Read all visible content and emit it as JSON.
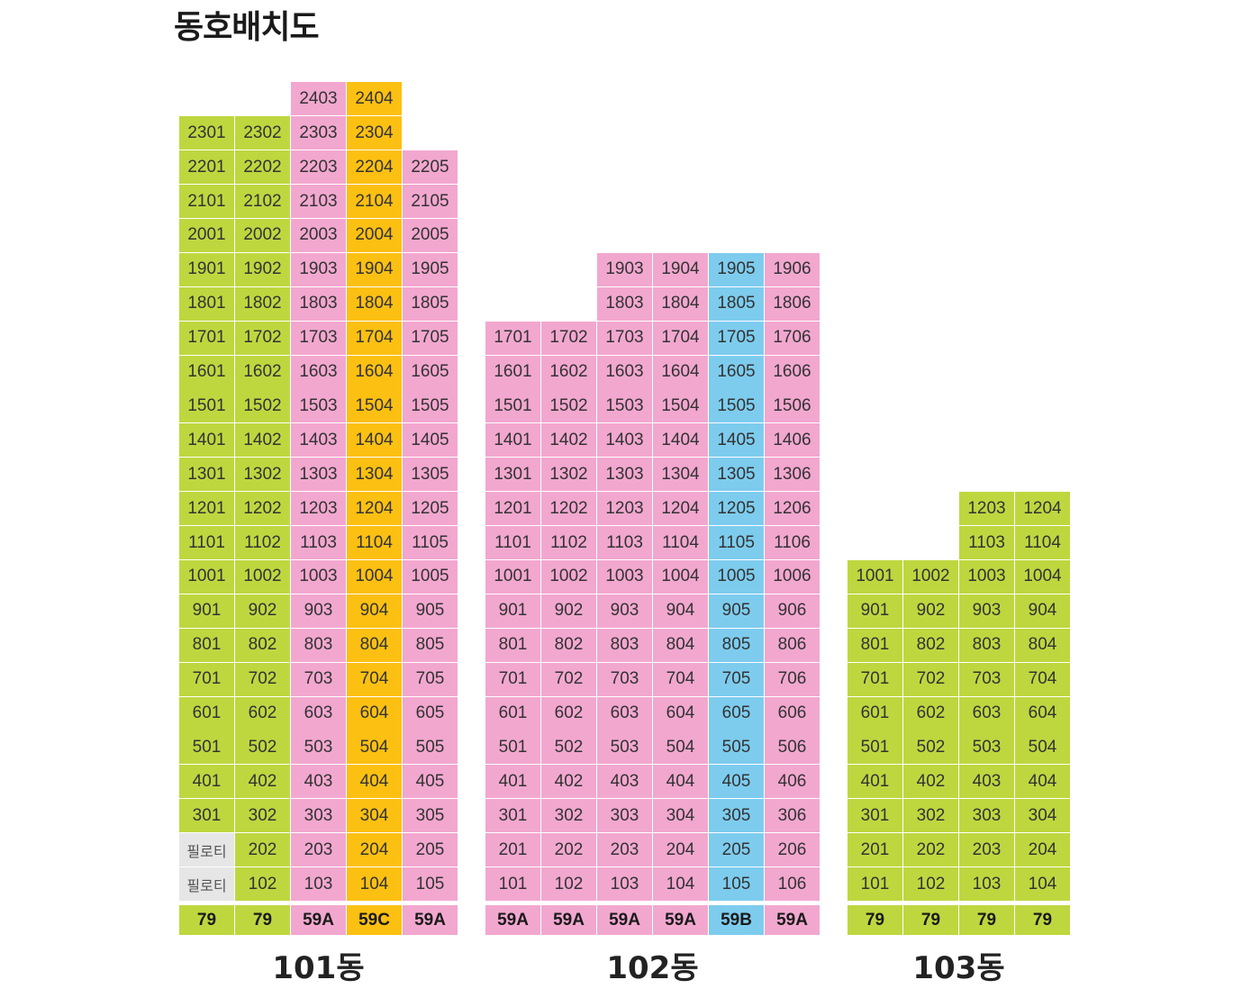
{
  "title": "동호배치도",
  "colors": {
    "79": "#bed73f",
    "59A": "#f2a7cf",
    "59B": "#7dccee",
    "59C": "#fcc012",
    "piloti": "#e6e6e6"
  },
  "piloti_label": "필로티",
  "buildings": [
    {
      "name": "101동",
      "max_floor": 24,
      "columns": [
        {
          "line": "01",
          "type": "79",
          "type_label": "79",
          "top_floor": 23,
          "piloti_floors": [
            1,
            2
          ]
        },
        {
          "line": "02",
          "type": "79",
          "type_label": "79",
          "top_floor": 23,
          "piloti_floors": []
        },
        {
          "line": "03",
          "type": "59A",
          "type_label": "59A",
          "top_floor": 24,
          "piloti_floors": []
        },
        {
          "line": "04",
          "type": "59C",
          "type_label": "59C",
          "top_floor": 24,
          "piloti_floors": []
        },
        {
          "line": "05",
          "type": "59A",
          "type_label": "59A",
          "top_floor": 22,
          "piloti_floors": []
        }
      ]
    },
    {
      "name": "102동",
      "max_floor": 24,
      "columns": [
        {
          "line": "01",
          "type": "59A",
          "type_label": "59A",
          "top_floor": 17,
          "piloti_floors": []
        },
        {
          "line": "02",
          "type": "59A",
          "type_label": "59A",
          "top_floor": 17,
          "piloti_floors": []
        },
        {
          "line": "03",
          "type": "59A",
          "type_label": "59A",
          "top_floor": 19,
          "piloti_floors": []
        },
        {
          "line": "04",
          "type": "59A",
          "type_label": "59A",
          "top_floor": 19,
          "piloti_floors": []
        },
        {
          "line": "05",
          "type": "59B",
          "type_label": "59B",
          "top_floor": 19,
          "piloti_floors": []
        },
        {
          "line": "06",
          "type": "59A",
          "type_label": "59A",
          "top_floor": 19,
          "piloti_floors": []
        }
      ]
    },
    {
      "name": "103동",
      "max_floor": 24,
      "columns": [
        {
          "line": "01",
          "type": "79",
          "type_label": "79",
          "top_floor": 10,
          "piloti_floors": []
        },
        {
          "line": "02",
          "type": "79",
          "type_label": "79",
          "top_floor": 10,
          "piloti_floors": []
        },
        {
          "line": "03",
          "type": "79",
          "type_label": "79",
          "top_floor": 12,
          "piloti_floors": []
        },
        {
          "line": "04",
          "type": "79",
          "type_label": "79",
          "top_floor": 12,
          "piloti_floors": []
        }
      ]
    }
  ]
}
